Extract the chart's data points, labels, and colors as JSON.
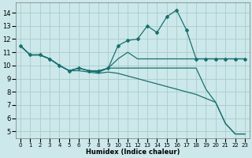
{
  "xlabel": "Humidex (Indice chaleur)",
  "background_color": "#cce8ea",
  "grid_color": "#aacccc",
  "line_color": "#1a7070",
  "xlim": [
    -0.5,
    23.5
  ],
  "ylim": [
    4.5,
    14.8
  ],
  "xticks": [
    0,
    1,
    2,
    3,
    4,
    5,
    6,
    7,
    8,
    9,
    10,
    11,
    12,
    13,
    14,
    15,
    16,
    17,
    18,
    19,
    20,
    21,
    22,
    23
  ],
  "yticks": [
    5,
    6,
    7,
    8,
    9,
    10,
    11,
    12,
    13,
    14
  ],
  "line1_x": [
    0,
    1,
    2,
    3,
    4,
    5,
    6,
    7,
    8,
    9,
    10,
    11,
    12,
    13,
    14,
    15,
    16,
    17,
    18,
    19,
    20,
    21,
    22,
    23
  ],
  "line1_y": [
    11.5,
    10.8,
    10.8,
    10.5,
    10.0,
    9.6,
    9.8,
    9.6,
    9.6,
    9.8,
    11.5,
    11.9,
    12.0,
    13.0,
    12.5,
    13.7,
    14.2,
    12.7,
    10.5,
    10.5,
    10.5,
    10.5,
    10.5,
    10.5
  ],
  "line2_x": [
    0,
    1,
    2,
    3,
    4,
    5,
    6,
    7,
    8,
    9,
    10,
    11,
    12,
    13,
    14,
    15,
    16,
    17,
    18,
    19,
    20,
    21,
    22,
    23
  ],
  "line2_y": [
    11.5,
    10.8,
    10.8,
    10.5,
    10.0,
    9.6,
    9.8,
    9.6,
    9.5,
    9.8,
    10.5,
    11.0,
    10.5,
    10.5,
    10.5,
    10.5,
    10.5,
    10.5,
    10.5,
    10.5,
    10.5,
    10.5,
    10.5,
    10.5
  ],
  "line3_x": [
    0,
    1,
    2,
    3,
    4,
    5,
    6,
    7,
    8,
    9,
    10,
    11,
    12,
    13,
    14,
    15,
    16,
    17,
    18,
    19,
    20,
    21,
    22,
    23
  ],
  "line3_y": [
    11.5,
    10.8,
    10.8,
    10.5,
    10.0,
    9.6,
    9.8,
    9.6,
    9.5,
    9.8,
    9.8,
    9.8,
    9.8,
    9.8,
    9.8,
    9.8,
    9.8,
    9.8,
    9.8,
    8.2,
    7.2,
    5.6,
    4.8,
    4.8
  ],
  "line4_x": [
    0,
    1,
    2,
    3,
    4,
    5,
    6,
    7,
    8,
    9,
    10,
    11,
    12,
    13,
    14,
    15,
    16,
    17,
    18,
    19,
    20,
    21,
    22,
    23
  ],
  "line4_y": [
    11.5,
    10.8,
    10.8,
    10.5,
    10.0,
    9.6,
    9.6,
    9.5,
    9.4,
    9.5,
    9.4,
    9.2,
    9.0,
    8.8,
    8.6,
    8.4,
    8.2,
    8.0,
    7.8,
    7.5,
    7.2,
    5.6,
    4.8,
    4.8
  ]
}
